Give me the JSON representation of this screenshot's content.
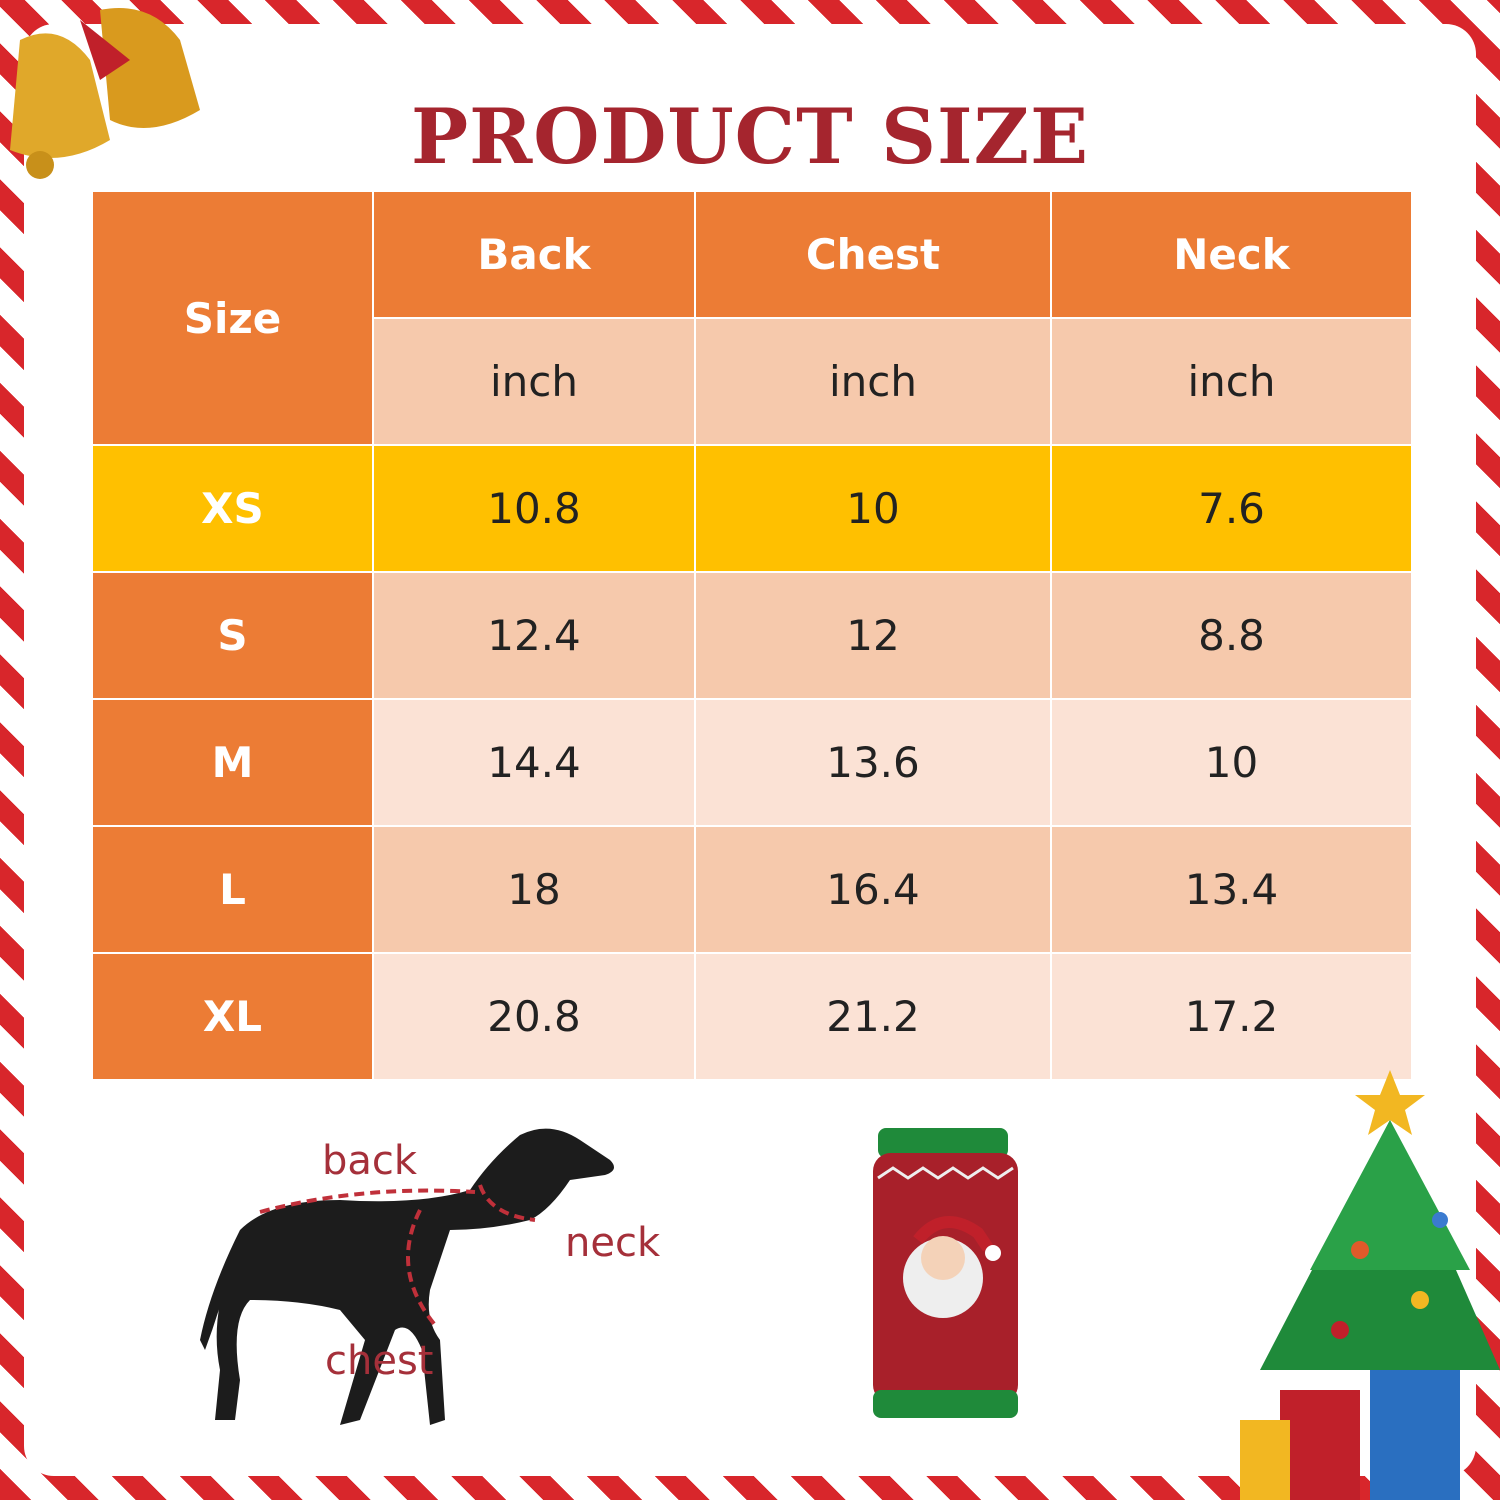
{
  "title": "PRODUCT SIZE",
  "table": {
    "size_header": "Size",
    "columns": [
      "Back",
      "Chest",
      "Neck"
    ],
    "units": [
      "inch",
      "inch",
      "inch"
    ],
    "rows": [
      {
        "size": "XS",
        "values": [
          "10.8",
          "10",
          "7.6"
        ]
      },
      {
        "size": "S",
        "values": [
          "12.4",
          "12",
          "8.8"
        ]
      },
      {
        "size": "M",
        "values": [
          "14.4",
          "13.6",
          "10"
        ]
      },
      {
        "size": "L",
        "values": [
          "18",
          "16.4",
          "13.4"
        ]
      },
      {
        "size": "XL",
        "values": [
          "20.8",
          "21.2",
          "17.2"
        ]
      }
    ]
  },
  "diagram_labels": {
    "back": "back",
    "neck": "neck",
    "chest": "chest"
  },
  "colors": {
    "title": "#a5252e",
    "header": "#ec7c35",
    "highlight_row": "#ffc000",
    "row_dark": "#f6c9ac",
    "row_light": "#fbe2d5",
    "border_stripe": "#d8262b"
  }
}
